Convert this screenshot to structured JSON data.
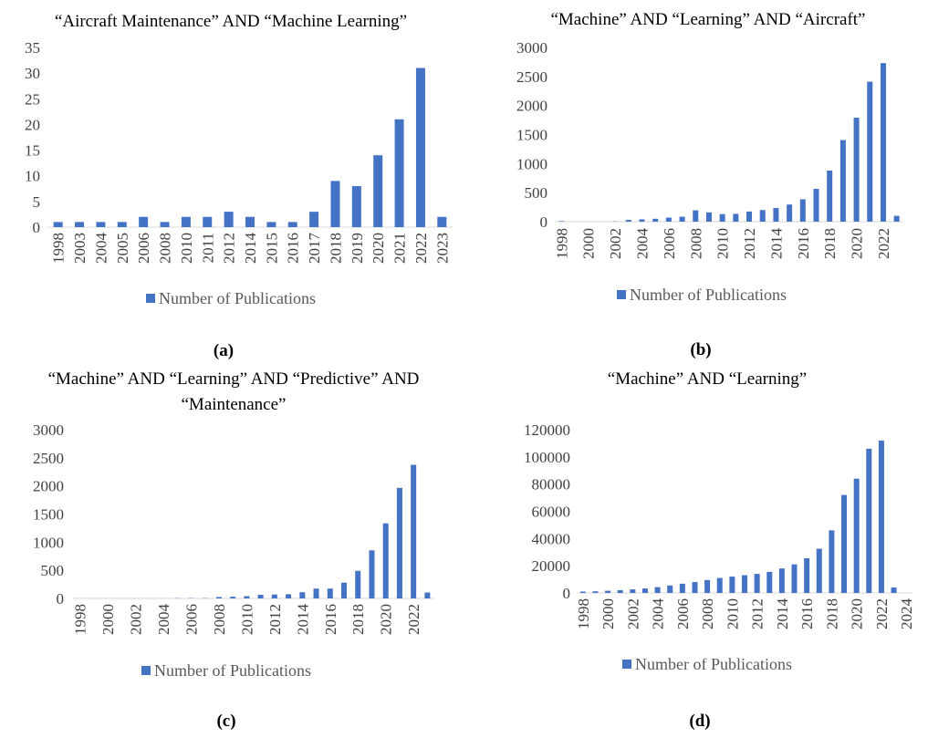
{
  "chart_data": [
    {
      "type": "bar",
      "title_lines": [
        "“Aircraft Maintenance” AND “Machine Learning”"
      ],
      "caption": "(a)",
      "categories": [
        "1998",
        "2003",
        "2004",
        "2005",
        "2006",
        "2008",
        "2010",
        "2011",
        "2012",
        "2014",
        "2015",
        "2016",
        "2017",
        "2018",
        "2019",
        "2020",
        "2021",
        "2022",
        "2023"
      ],
      "series": [
        {
          "name": "Number of Publications",
          "values": [
            1,
            1,
            1,
            1,
            2,
            1,
            2,
            2,
            3,
            2,
            1,
            1,
            3,
            9,
            8,
            14,
            21,
            31,
            2
          ]
        }
      ],
      "ylim": [
        0,
        35
      ],
      "yticks": [
        0,
        5,
        10,
        15,
        20,
        25,
        30,
        35
      ],
      "xtick_labels": [
        "1998",
        "2003",
        "2004",
        "2005",
        "2006",
        "2008",
        "2010",
        "2011",
        "2012",
        "2014",
        "2015",
        "2016",
        "2017",
        "2018",
        "2019",
        "2020",
        "2021",
        "2022",
        "2023"
      ],
      "grid": false,
      "legend": "bottom",
      "color": "#4472c4"
    },
    {
      "type": "bar",
      "title_lines": [
        "“Machine” AND “Learning” AND “Aircraft”"
      ],
      "caption": "(b)",
      "categories": [
        "1998",
        "1999",
        "2000",
        "2001",
        "2002",
        "2003",
        "2004",
        "2005",
        "2006",
        "2007",
        "2008",
        "2009",
        "2010",
        "2011",
        "2012",
        "2013",
        "2014",
        "2015",
        "2016",
        "2017",
        "2018",
        "2019",
        "2020",
        "2021",
        "2022",
        "2023"
      ],
      "series": [
        {
          "name": "Number of Publications",
          "values": [
            10,
            0,
            0,
            0,
            5,
            30,
            40,
            50,
            70,
            85,
            195,
            160,
            130,
            135,
            175,
            200,
            235,
            295,
            385,
            565,
            880,
            1405,
            1790,
            2410,
            2730,
            100
          ]
        }
      ],
      "ylim": [
        0,
        3000
      ],
      "yticks": [
        0,
        500,
        1000,
        1500,
        2000,
        2500,
        3000
      ],
      "xtick_labels": [
        "1998",
        "2000",
        "2002",
        "2004",
        "2006",
        "2008",
        "2010",
        "2012",
        "2014",
        "2016",
        "2018",
        "2020",
        "2022"
      ],
      "grid": false,
      "legend": "bottom",
      "color": "#4472c4"
    },
    {
      "type": "bar",
      "title_lines": [
        "“Machine” AND “Learning” AND “Predictive” AND",
        "“Maintenance”"
      ],
      "caption": "(c)",
      "categories": [
        "1998",
        "1999",
        "2000",
        "2001",
        "2002",
        "2003",
        "2004",
        "2005",
        "2006",
        "2007",
        "2008",
        "2009",
        "2010",
        "2011",
        "2012",
        "2013",
        "2014",
        "2015",
        "2016",
        "2017",
        "2018",
        "2019",
        "2020",
        "2021",
        "2022",
        "2023"
      ],
      "series": [
        {
          "name": "Number of Publications",
          "values": [
            0,
            0,
            0,
            0,
            0,
            0,
            0,
            5,
            5,
            5,
            25,
            30,
            40,
            65,
            70,
            75,
            110,
            175,
            175,
            280,
            490,
            855,
            1335,
            1965,
            2375,
            105
          ]
        }
      ],
      "ylim": [
        0,
        3000
      ],
      "yticks": [
        0,
        500,
        1000,
        1500,
        2000,
        2500,
        3000
      ],
      "xtick_labels": [
        "1998",
        "2000",
        "2002",
        "2004",
        "2006",
        "2008",
        "2010",
        "2012",
        "2014",
        "2016",
        "2018",
        "2020",
        "2022"
      ],
      "grid": false,
      "legend": "bottom",
      "color": "#4472c4"
    },
    {
      "type": "bar",
      "title_lines": [
        "“Machine” AND “Learning”"
      ],
      "caption": "(d)",
      "categories": [
        "1998",
        "1999",
        "2000",
        "2001",
        "2002",
        "2003",
        "2004",
        "2005",
        "2006",
        "2007",
        "2008",
        "2009",
        "2010",
        "2011",
        "2012",
        "2013",
        "2014",
        "2015",
        "2016",
        "2017",
        "2018",
        "2019",
        "2020",
        "2021",
        "2022",
        "2023",
        "2024"
      ],
      "series": [
        {
          "name": "Number of Publications",
          "values": [
            1000,
            1200,
            1600,
            2000,
            2600,
            3300,
            4300,
            5500,
            6800,
            8000,
            9500,
            11000,
            12000,
            13000,
            14000,
            15500,
            18000,
            21000,
            25500,
            32500,
            46000,
            72000,
            84000,
            106000,
            112000,
            4000,
            0
          ]
        }
      ],
      "ylim": [
        0,
        120000
      ],
      "yticks": [
        0,
        20000,
        40000,
        60000,
        80000,
        100000,
        120000
      ],
      "xtick_labels": [
        "1998",
        "2000",
        "2002",
        "2004",
        "2006",
        "2008",
        "2010",
        "2012",
        "2014",
        "2016",
        "2018",
        "2020",
        "2022",
        "2024"
      ],
      "grid": false,
      "legend": "bottom",
      "color": "#4472c4"
    }
  ]
}
